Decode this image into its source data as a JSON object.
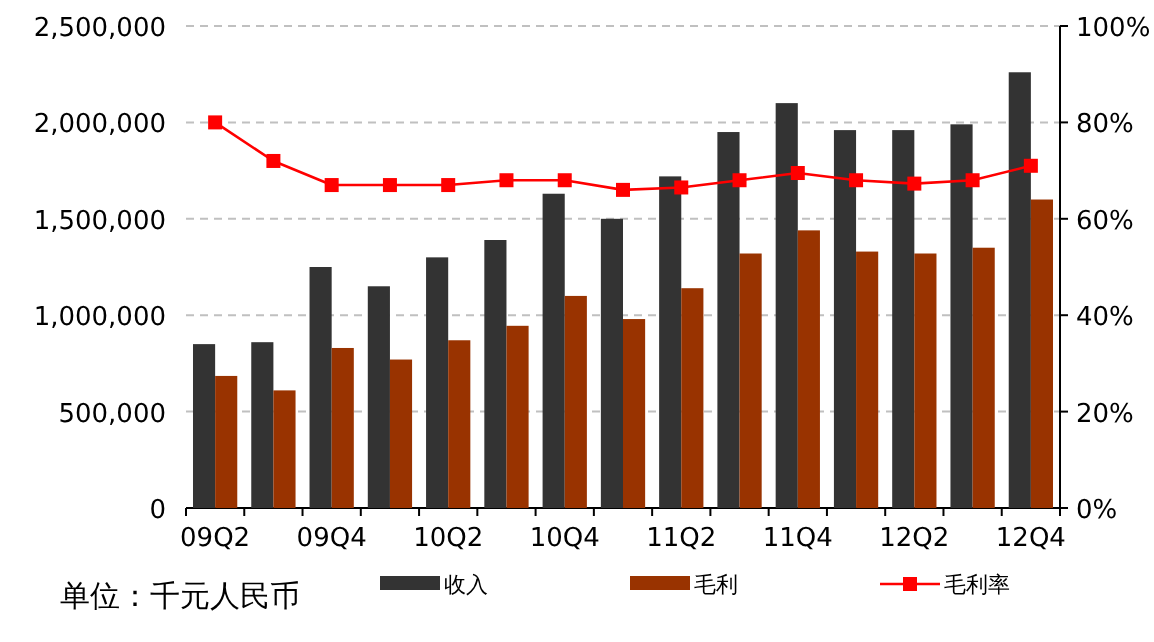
{
  "chart_data": {
    "type": "bar",
    "categories": [
      "09Q2",
      null,
      "09Q4",
      null,
      "10Q2",
      null,
      "10Q4",
      null,
      "11Q2",
      null,
      "11Q4",
      null,
      "12Q2",
      null,
      "12Q4"
    ],
    "series": [
      {
        "name": "收入",
        "color": "#333333",
        "values": [
          850000,
          860000,
          1250000,
          1150000,
          1300000,
          1390000,
          1630000,
          1500000,
          1720000,
          1950000,
          2100000,
          1960000,
          1960000,
          1990000,
          2260000
        ]
      },
      {
        "name": "毛利",
        "color": "#993300",
        "values": [
          685000,
          610000,
          830000,
          770000,
          870000,
          945000,
          1100000,
          980000,
          1140000,
          1320000,
          1440000,
          1330000,
          1320000,
          1350000,
          1600000
        ]
      },
      {
        "name": "毛利率",
        "type": "line",
        "axis": "y2",
        "color": "#ff0000",
        "values": [
          80,
          72,
          67,
          67,
          67,
          68,
          68,
          66,
          66.5,
          68,
          69.5,
          68,
          67.3,
          68,
          71
        ]
      }
    ],
    "ylim": [
      0,
      2500000
    ],
    "yticks": [
      0,
      {
        "value": 500000,
        "label": "500,000"
      },
      {
        "value": 1000000,
        "label": "1,000,000"
      },
      {
        "value": 1500000,
        "label": "1,500,000"
      },
      {
        "value": 2000000,
        "label": "2,000,000"
      },
      {
        "value": 2500000,
        "label": "2,500,000"
      }
    ],
    "y2lim": [
      0,
      100
    ],
    "y2ticks": [
      {
        "value": 0,
        "label": "0%"
      },
      {
        "value": 20,
        "label": "20%"
      },
      {
        "value": 40,
        "label": "40%"
      },
      {
        "value": 60,
        "label": "60%"
      },
      {
        "value": 80,
        "label": "80%"
      },
      {
        "value": 100,
        "label": "100%"
      }
    ],
    "grid": "y",
    "legend": "bottom",
    "marker": "square",
    "annotations": [
      "单位：千元人民币"
    ]
  }
}
